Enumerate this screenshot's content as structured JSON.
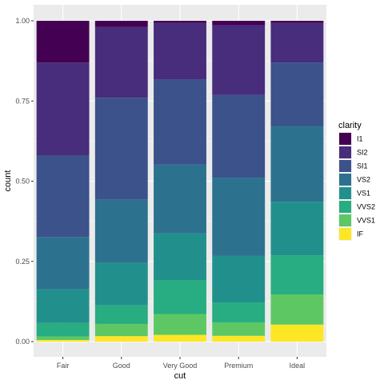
{
  "chart_data": {
    "type": "bar",
    "stacked": "fill",
    "xlabel": "cut",
    "ylabel": "count",
    "ylim": [
      0,
      1
    ],
    "yticks": [
      0,
      0.25,
      0.5,
      0.75,
      1
    ],
    "ytick_labels": [
      "0.00",
      "0.25",
      "0.50",
      "0.75",
      "1.00"
    ],
    "grid": true,
    "legend": {
      "title": "clarity",
      "position": "right"
    },
    "categories": [
      "Fair",
      "Good",
      "Very Good",
      "Premium",
      "Ideal"
    ],
    "series": [
      {
        "name": "I1",
        "color": "#440154",
        "values": [
          0.13,
          0.019,
          0.007,
          0.014,
          0.007
        ]
      },
      {
        "name": "SI2",
        "color": "#472D7B",
        "values": [
          0.29,
          0.221,
          0.176,
          0.217,
          0.123
        ]
      },
      {
        "name": "SI1",
        "color": "#3B528B",
        "values": [
          0.254,
          0.317,
          0.265,
          0.258,
          0.198
        ]
      },
      {
        "name": "VS2",
        "color": "#2C728E",
        "values": [
          0.163,
          0.198,
          0.215,
          0.244,
          0.236
        ]
      },
      {
        "name": "VS1",
        "color": "#21908C",
        "values": [
          0.105,
          0.132,
          0.146,
          0.145,
          0.167
        ]
      },
      {
        "name": "VVS2",
        "color": "#27AD81",
        "values": [
          0.042,
          0.058,
          0.105,
          0.062,
          0.122
        ]
      },
      {
        "name": "VVS1",
        "color": "#5DC863",
        "values": [
          0.011,
          0.038,
          0.065,
          0.042,
          0.094
        ]
      },
      {
        "name": "IF",
        "color": "#FDE725",
        "values": [
          0.005,
          0.017,
          0.021,
          0.018,
          0.053
        ]
      }
    ],
    "legend_swatch_colors": [
      "#440154",
      "#472D7B",
      "#3B528B",
      "#2C728E",
      "#21908C",
      "#27AD81",
      "#5DC863",
      "#FDE725"
    ],
    "panel_background": "#EBEBEB",
    "grid_color": "#FFFFFF"
  }
}
